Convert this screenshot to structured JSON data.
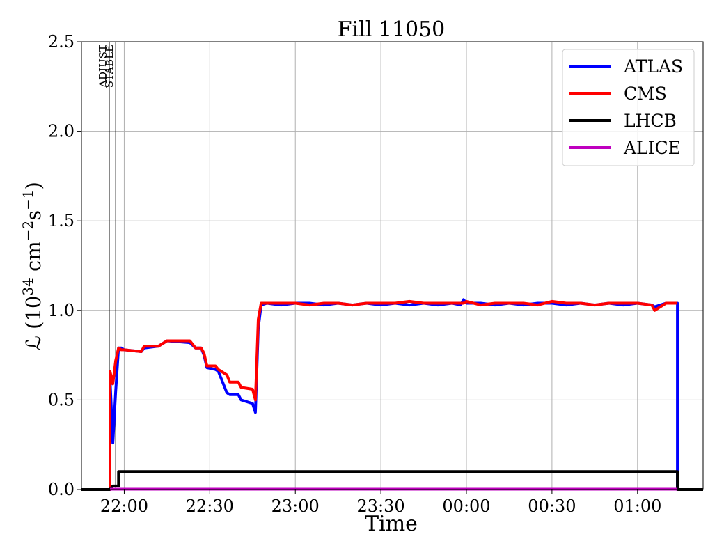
{
  "chart_data": {
    "type": "line",
    "title": "Fill 11050",
    "xlabel": "Time",
    "ylabel_main": "ℒ (10",
    "ylabel_exp1": "34",
    "ylabel_unit": " cm",
    "ylabel_exp2": "−2",
    "ylabel_s": "s",
    "ylabel_exp3": "−1",
    "ylabel_close": ")",
    "xlim": [
      "21:45",
      "01:23"
    ],
    "ylim": [
      0,
      2.5
    ],
    "grid": true,
    "legend_position": "top-right",
    "x_ticks": [
      "22:00",
      "22:30",
      "23:00",
      "23:30",
      "00:00",
      "00:30",
      "01:00"
    ],
    "y_ticks": [
      "0.0",
      "0.5",
      "1.0",
      "1.5",
      "2.0",
      "2.5"
    ],
    "y_tick_values": [
      0,
      0.5,
      1.0,
      1.5,
      2.0,
      2.5
    ],
    "markers": [
      {
        "label": "ADJUST",
        "time": "21:55"
      },
      {
        "label": "STABLE",
        "time": "21:57"
      }
    ],
    "series": [
      {
        "name": "ATLAS",
        "color": "#0000ff",
        "x": [
          "21:45",
          "21:55",
          "21:55",
          "21:56",
          "21:57",
          "21:58",
          "21:59",
          "22:00",
          "22:06",
          "22:07",
          "22:12",
          "22:15",
          "22:23",
          "22:25",
          "22:27",
          "22:28",
          "22:29",
          "22:32",
          "22:33",
          "22:36",
          "22:37",
          "22:40",
          "22:41",
          "22:45",
          "22:46",
          "22:47",
          "22:48",
          "22:50",
          "22:55",
          "23:00",
          "23:05",
          "23:10",
          "23:15",
          "23:20",
          "23:25",
          "23:30",
          "23:35",
          "23:40",
          "23:45",
          "23:50",
          "23:55",
          "23:58",
          "23:59",
          "00:00",
          "00:05",
          "00:10",
          "00:15",
          "00:20",
          "00:25",
          "00:30",
          "00:35",
          "00:40",
          "00:45",
          "00:50",
          "00:55",
          "01:00",
          "01:05",
          "01:06",
          "01:10",
          "01:14",
          "01:14",
          "01:23"
        ],
        "values": [
          0,
          0,
          0.62,
          0.26,
          0.55,
          0.79,
          0.79,
          0.78,
          0.77,
          0.79,
          0.8,
          0.83,
          0.82,
          0.79,
          0.79,
          0.75,
          0.68,
          0.67,
          0.66,
          0.54,
          0.53,
          0.53,
          0.5,
          0.48,
          0.43,
          0.9,
          1.03,
          1.04,
          1.03,
          1.04,
          1.04,
          1.03,
          1.04,
          1.03,
          1.04,
          1.03,
          1.04,
          1.03,
          1.04,
          1.03,
          1.04,
          1.03,
          1.06,
          1.04,
          1.04,
          1.03,
          1.04,
          1.03,
          1.04,
          1.04,
          1.03,
          1.04,
          1.03,
          1.04,
          1.03,
          1.04,
          1.03,
          1.02,
          1.04,
          1.04,
          0,
          0
        ]
      },
      {
        "name": "CMS",
        "color": "#ff0000",
        "x": [
          "21:45",
          "21:55",
          "21:55",
          "21:56",
          "21:57",
          "21:58",
          "21:59",
          "22:00",
          "22:06",
          "22:07",
          "22:12",
          "22:15",
          "22:23",
          "22:25",
          "22:27",
          "22:28",
          "22:29",
          "22:32",
          "22:33",
          "22:36",
          "22:37",
          "22:40",
          "22:41",
          "22:45",
          "22:46",
          "22:47",
          "22:48",
          "22:50",
          "22:55",
          "23:00",
          "23:05",
          "23:10",
          "23:15",
          "23:20",
          "23:25",
          "23:30",
          "23:35",
          "23:40",
          "23:45",
          "23:50",
          "23:55",
          "23:58",
          "23:59",
          "00:00",
          "00:05",
          "00:10",
          "00:15",
          "00:20",
          "00:25",
          "00:30",
          "00:35",
          "00:40",
          "00:45",
          "00:50",
          "00:55",
          "01:00",
          "01:05",
          "01:06",
          "01:10",
          "01:14",
          "01:14"
        ],
        "values": [
          0,
          0,
          0.66,
          0.59,
          0.72,
          0.79,
          0.78,
          0.78,
          0.77,
          0.8,
          0.8,
          0.83,
          0.83,
          0.79,
          0.79,
          0.76,
          0.69,
          0.69,
          0.67,
          0.64,
          0.6,
          0.6,
          0.57,
          0.56,
          0.5,
          0.95,
          1.04,
          1.04,
          1.04,
          1.04,
          1.03,
          1.04,
          1.04,
          1.03,
          1.04,
          1.04,
          1.04,
          1.05,
          1.04,
          1.04,
          1.04,
          1.04,
          1.04,
          1.05,
          1.03,
          1.04,
          1.04,
          1.04,
          1.03,
          1.05,
          1.04,
          1.04,
          1.03,
          1.04,
          1.04,
          1.04,
          1.03,
          1.0,
          1.04,
          1.04,
          1.04
        ]
      },
      {
        "name": "LHCB",
        "color": "#000000",
        "x": [
          "21:45",
          "21:55",
          "21:56",
          "21:58",
          "21:58",
          "22:00",
          "22:10",
          "22:20",
          "22:30",
          "22:40",
          "22:50",
          "23:00",
          "23:10",
          "23:20",
          "23:30",
          "23:40",
          "23:50",
          "00:00",
          "00:10",
          "00:20",
          "00:30",
          "00:40",
          "00:50",
          "01:00",
          "01:10",
          "01:14",
          "01:14",
          "01:23"
        ],
        "values": [
          0,
          0,
          0.02,
          0.02,
          0.1,
          0.1,
          0.1,
          0.1,
          0.1,
          0.1,
          0.1,
          0.1,
          0.1,
          0.1,
          0.1,
          0.1,
          0.1,
          0.1,
          0.1,
          0.1,
          0.1,
          0.1,
          0.1,
          0.1,
          0.1,
          0.1,
          0,
          0
        ]
      },
      {
        "name": "ALICE",
        "color": "#bf00bf",
        "x": [
          "21:55",
          "01:14"
        ],
        "values": [
          0.002,
          0.002
        ]
      }
    ]
  }
}
